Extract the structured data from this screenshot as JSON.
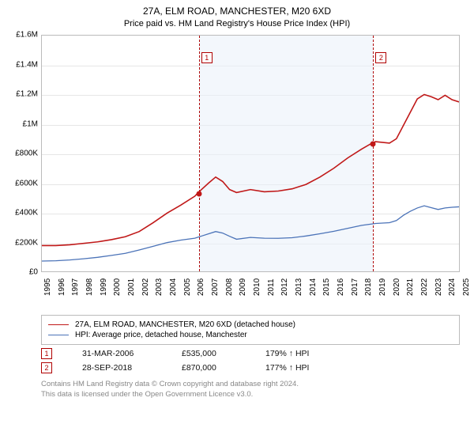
{
  "title": "27A, ELM ROAD, MANCHESTER, M20 6XD",
  "subtitle": "Price paid vs. HM Land Registry's House Price Index (HPI)",
  "chart": {
    "type": "line",
    "plot_bg": "#ffffff",
    "shade_bg": "#eaf0f9",
    "grid_color": "#e6e6e6",
    "border_color": "#bbbbbb",
    "ylim": [
      0,
      1600000
    ],
    "ytick_step": 200000,
    "yticks": [
      "£0",
      "£200K",
      "£400K",
      "£600K",
      "£800K",
      "£1M",
      "£1.2M",
      "£1.4M",
      "£1.6M"
    ],
    "xlim": [
      1995,
      2025
    ],
    "xticks": [
      "1995",
      "1996",
      "1997",
      "1998",
      "1999",
      "2000",
      "2001",
      "2002",
      "2003",
      "2004",
      "2005",
      "2006",
      "2007",
      "2008",
      "2009",
      "2010",
      "2011",
      "2012",
      "2013",
      "2014",
      "2015",
      "2016",
      "2017",
      "2018",
      "2019",
      "2020",
      "2021",
      "2022",
      "2023",
      "2024",
      "2025"
    ],
    "xticks_count": 31,
    "shade_start_year": 2006.25,
    "shade_end_year": 2018.74,
    "vline1_year": 2006.25,
    "vline2_year": 2018.74,
    "marker1_label": "1",
    "marker2_label": "2",
    "series": [
      {
        "name": "price_paid",
        "color": "#c01818",
        "width": 1.6,
        "points": [
          [
            1995,
            175000
          ],
          [
            1996,
            175000
          ],
          [
            1997,
            180000
          ],
          [
            1998,
            190000
          ],
          [
            1999,
            200000
          ],
          [
            2000,
            215000
          ],
          [
            2001,
            235000
          ],
          [
            2002,
            270000
          ],
          [
            2003,
            330000
          ],
          [
            2004,
            395000
          ],
          [
            2005,
            450000
          ],
          [
            2006,
            510000
          ],
          [
            2006.25,
            535000
          ],
          [
            2007,
            600000
          ],
          [
            2007.5,
            640000
          ],
          [
            2008,
            610000
          ],
          [
            2008.5,
            555000
          ],
          [
            2009,
            535000
          ],
          [
            2010,
            555000
          ],
          [
            2011,
            540000
          ],
          [
            2012,
            545000
          ],
          [
            2013,
            560000
          ],
          [
            2014,
            590000
          ],
          [
            2015,
            640000
          ],
          [
            2016,
            700000
          ],
          [
            2017,
            770000
          ],
          [
            2018,
            830000
          ],
          [
            2018.74,
            870000
          ],
          [
            2019,
            880000
          ],
          [
            2020,
            870000
          ],
          [
            2020.5,
            900000
          ],
          [
            2021,
            990000
          ],
          [
            2021.5,
            1080000
          ],
          [
            2022,
            1170000
          ],
          [
            2022.5,
            1200000
          ],
          [
            2023,
            1185000
          ],
          [
            2023.5,
            1165000
          ],
          [
            2024,
            1195000
          ],
          [
            2024.5,
            1165000
          ],
          [
            2025,
            1150000
          ]
        ],
        "sale_points": [
          {
            "year": 2006.25,
            "value": 535000
          },
          {
            "year": 2018.74,
            "value": 870000
          }
        ]
      },
      {
        "name": "hpi",
        "color": "#4b73b8",
        "width": 1.3,
        "points": [
          [
            1995,
            70000
          ],
          [
            1996,
            72000
          ],
          [
            1997,
            77000
          ],
          [
            1998,
            85000
          ],
          [
            1999,
            95000
          ],
          [
            2000,
            108000
          ],
          [
            2001,
            122000
          ],
          [
            2002,
            145000
          ],
          [
            2003,
            170000
          ],
          [
            2004,
            195000
          ],
          [
            2005,
            212000
          ],
          [
            2006,
            225000
          ],
          [
            2007,
            255000
          ],
          [
            2007.5,
            270000
          ],
          [
            2008,
            260000
          ],
          [
            2008.5,
            238000
          ],
          [
            2009,
            218000
          ],
          [
            2010,
            230000
          ],
          [
            2011,
            225000
          ],
          [
            2012,
            224000
          ],
          [
            2013,
            228000
          ],
          [
            2014,
            240000
          ],
          [
            2015,
            255000
          ],
          [
            2016,
            272000
          ],
          [
            2017,
            292000
          ],
          [
            2018,
            312000
          ],
          [
            2019,
            325000
          ],
          [
            2020,
            330000
          ],
          [
            2020.5,
            345000
          ],
          [
            2021,
            380000
          ],
          [
            2021.5,
            408000
          ],
          [
            2022,
            430000
          ],
          [
            2022.5,
            445000
          ],
          [
            2023,
            432000
          ],
          [
            2023.5,
            420000
          ],
          [
            2024,
            430000
          ],
          [
            2024.5,
            435000
          ],
          [
            2025,
            438000
          ]
        ]
      }
    ]
  },
  "legend": {
    "item1": "27A, ELM ROAD, MANCHESTER, M20 6XD (detached house)",
    "item2": "HPI: Average price, detached house, Manchester"
  },
  "events": [
    {
      "n": "1",
      "date": "31-MAR-2006",
      "price": "£535,000",
      "pct": "179% ↑ HPI"
    },
    {
      "n": "2",
      "date": "28-SEP-2018",
      "price": "£870,000",
      "pct": "177% ↑ HPI"
    }
  ],
  "footer_line1": "Contains HM Land Registry data © Crown copyright and database right 2024.",
  "footer_line2": "This data is licensed under the Open Government Licence v3.0."
}
